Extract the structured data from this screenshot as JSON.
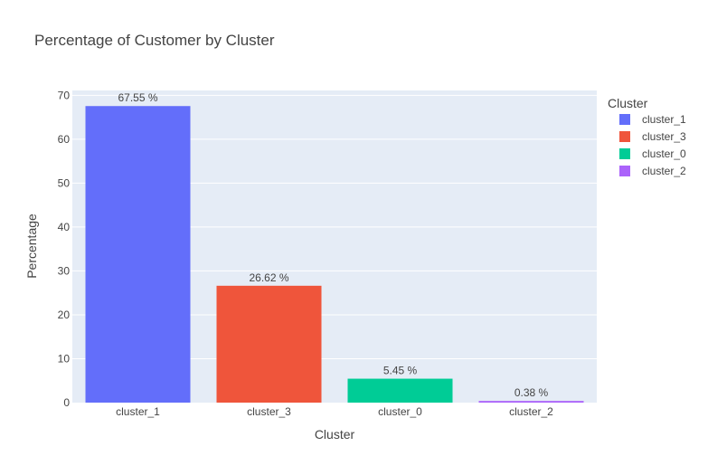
{
  "chart_data": {
    "type": "bar",
    "title": "Percentage of Customer by Cluster",
    "xlabel": "Cluster",
    "ylabel": "Percentage",
    "categories": [
      "cluster_1",
      "cluster_3",
      "cluster_0",
      "cluster_2"
    ],
    "values": [
      67.55,
      26.62,
      5.45,
      0.38
    ],
    "data_labels": [
      "67.55 %",
      "26.62 %",
      "5.45 %",
      "0.38 %"
    ],
    "colors": [
      "#636efa",
      "#ef553b",
      "#00cc96",
      "#ab63fa"
    ],
    "yticks": [
      0,
      10,
      20,
      30,
      40,
      50,
      60,
      70
    ],
    "ylim": [
      0,
      71.1
    ],
    "grid": true,
    "plot_bg": "#e5ecf6",
    "legend": {
      "title": "Cluster",
      "placement": "top-right",
      "entries": [
        "cluster_1",
        "cluster_3",
        "cluster_0",
        "cluster_2"
      ]
    }
  }
}
